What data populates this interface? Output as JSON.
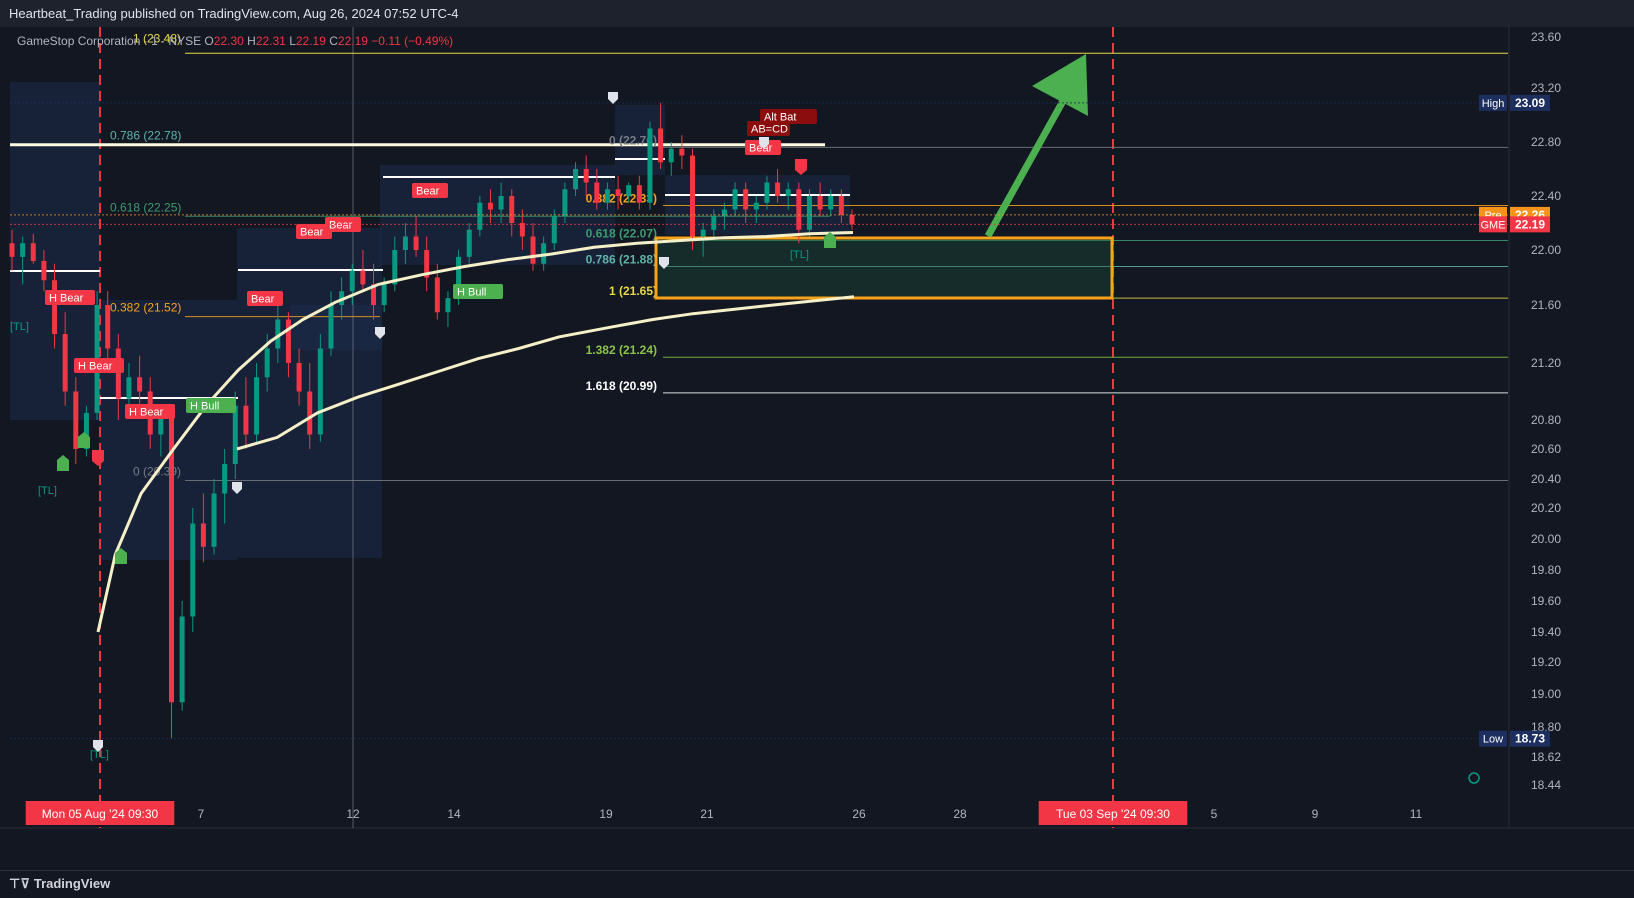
{
  "publisher": "Heartbeat_Trading published on TradingView.com, Aug 26, 2024 07:52 UTC-4",
  "brand": "TradingView",
  "legend": {
    "symbol": "GameStop Corporation · 1 · NYSE",
    "overlap_text": "1 (23.48)",
    "o_label": "O",
    "o": "22.30",
    "h_label": "H",
    "h": "22.31",
    "l_label": "L",
    "l": "22.19",
    "c_label": "C",
    "c": "22.19",
    "change": "−0.11 (−0.49%)"
  },
  "colors": {
    "background": "#131722",
    "bull": "#089981",
    "bear": "#f23645",
    "vwap": "#f5f0c8",
    "fib_yellow": "#e6d84a",
    "zone_border": "#f7a21b",
    "arrow": "#4caf50"
  },
  "price_tags": [
    {
      "label": "High",
      "value": "23.09",
      "price": 23.09,
      "bg": "#1c2f5e",
      "color": "#ffffff"
    },
    {
      "label": "Pre",
      "value": "22.26",
      "price": 22.26,
      "bg": "#f7931a",
      "color": "#ffffff"
    },
    {
      "label": "GME",
      "value": "22.19",
      "price": 22.19,
      "bg": "#f23645",
      "color": "#ffffff"
    },
    {
      "label": "Low",
      "value": "18.73",
      "price": 18.73,
      "bg": "#1c2f5e",
      "color": "#ffffff"
    }
  ],
  "chart_data": {
    "type": "candlestick",
    "title": "",
    "ylim": [
      18.36,
      23.72
    ],
    "y_ticks": [
      "23.60",
      "23.20",
      "22.80",
      "22.40",
      "22.00",
      "21.60",
      "21.20",
      "20.80",
      "20.60",
      "20.40",
      "20.20",
      "20.00",
      "19.80",
      "19.60",
      "19.40",
      "19.20",
      "19.00",
      "18.80",
      "18.62",
      "18.44"
    ],
    "x_ticks": [
      {
        "label": "Mon 05 Aug '24   09:30",
        "highlight": true
      },
      {
        "label": "7"
      },
      {
        "label": "12"
      },
      {
        "label": "14"
      },
      {
        "label": "19"
      },
      {
        "label": "21"
      },
      {
        "label": "26"
      },
      {
        "label": "28"
      },
      {
        "label": "Tue 03 Sep '24   09:30",
        "highlight": true
      },
      {
        "label": "5"
      },
      {
        "label": "9"
      },
      {
        "label": "11"
      }
    ],
    "fib_left": [
      {
        "label": "0.786 (22.78)",
        "price": 22.78,
        "color": "#5fb3a8"
      },
      {
        "label": "0.618 (22.25)",
        "price": 22.25,
        "color": "#3d9970"
      },
      {
        "label": "0.382 (21.52)",
        "price": 21.52,
        "color": "#f7a21b"
      },
      {
        "label": "0 (20.39)",
        "price": 20.39,
        "color": "#787b86"
      }
    ],
    "fib_right": [
      {
        "label": "0 (22.76)",
        "price": 22.76,
        "color": "#787b86"
      },
      {
        "label": "0.382 (22.33)",
        "price": 22.33,
        "color": "#f7a21b"
      },
      {
        "label": "0.618 (22.07)",
        "price": 22.07,
        "color": "#3d9970"
      },
      {
        "label": "0.786 (21.88)",
        "price": 21.88,
        "color": "#5fb3a8"
      },
      {
        "label": "1 (21.65)",
        "price": 21.65,
        "color": "#e6d84a"
      },
      {
        "label": "1.382 (21.24)",
        "price": 21.24,
        "color": "#8bc34a"
      },
      {
        "label": "1.618 (20.99)",
        "price": 20.99,
        "color": "#ffffff"
      }
    ],
    "top_fib": {
      "label": "1 (23.48)",
      "price": 23.48
    },
    "signals": [
      {
        "text": "H Bear",
        "type": "bear"
      },
      {
        "text": "H Bear",
        "type": "bear"
      },
      {
        "text": "H Bear",
        "type": "bear"
      },
      {
        "text": "H Bull",
        "type": "bull"
      },
      {
        "text": "Bear",
        "type": "bear"
      },
      {
        "text": "Bear",
        "type": "bear"
      },
      {
        "text": "Bear",
        "type": "bear"
      },
      {
        "text": "Bear",
        "type": "bear"
      },
      {
        "text": "H Bull",
        "type": "bull"
      },
      {
        "text": "Alt Bat",
        "type": "dark"
      },
      {
        "text": "AB=CD",
        "type": "dark"
      },
      {
        "text": "Bear",
        "type": "bear"
      }
    ],
    "tl_tags": [
      "[TL]",
      "[TL]",
      "[TL]",
      "[TL]"
    ],
    "vwap_upper": [
      [
        19.4,
        0
      ],
      [
        19.9,
        8
      ],
      [
        20.3,
        20
      ],
      [
        20.6,
        35
      ],
      [
        20.9,
        50
      ],
      [
        21.15,
        65
      ],
      [
        21.35,
        80
      ],
      [
        21.5,
        95
      ],
      [
        21.62,
        110
      ],
      [
        21.75,
        130
      ],
      [
        21.82,
        150
      ],
      [
        21.88,
        170
      ],
      [
        21.93,
        190
      ],
      [
        21.97,
        210
      ],
      [
        22.02,
        230
      ],
      [
        22.05,
        250
      ],
      [
        22.07,
        270
      ],
      [
        22.09,
        290
      ],
      [
        22.1,
        310
      ],
      [
        22.12,
        330
      ],
      [
        22.13,
        350
      ]
    ],
    "vwap_lower": [
      [
        20.6,
        0
      ],
      [
        20.68,
        15
      ],
      [
        20.85,
        30
      ],
      [
        20.96,
        45
      ],
      [
        21.05,
        60
      ],
      [
        21.14,
        75
      ],
      [
        21.23,
        90
      ],
      [
        21.3,
        105
      ],
      [
        21.38,
        120
      ],
      [
        21.45,
        140
      ],
      [
        21.5,
        155
      ],
      [
        21.54,
        170
      ],
      [
        21.57,
        185
      ],
      [
        21.6,
        200
      ],
      [
        21.63,
        215
      ],
      [
        21.66,
        230
      ]
    ],
    "candles": [
      [
        22.05,
        22.15,
        21.85,
        21.95
      ],
      [
        21.95,
        22.1,
        21.75,
        22.05
      ],
      [
        22.05,
        22.12,
        21.9,
        21.92
      ],
      [
        21.92,
        22.0,
        21.7,
        21.78
      ],
      [
        21.78,
        21.9,
        21.3,
        21.4
      ],
      [
        21.4,
        21.55,
        20.9,
        21.0
      ],
      [
        21.0,
        21.1,
        20.5,
        20.6
      ],
      [
        20.6,
        20.9,
        20.55,
        20.85
      ],
      [
        20.85,
        21.7,
        20.8,
        21.6
      ],
      [
        21.6,
        21.7,
        21.2,
        21.3
      ],
      [
        21.3,
        21.4,
        20.8,
        20.95
      ],
      [
        20.95,
        21.2,
        20.85,
        21.1
      ],
      [
        21.1,
        21.25,
        20.9,
        21.0
      ],
      [
        21.0,
        21.1,
        20.6,
        20.7
      ],
      [
        20.7,
        20.9,
        20.55,
        20.82
      ],
      [
        20.82,
        20.9,
        18.73,
        18.95
      ],
      [
        18.95,
        19.6,
        18.9,
        19.5
      ],
      [
        19.5,
        20.2,
        19.4,
        20.1
      ],
      [
        20.1,
        20.3,
        19.85,
        19.95
      ],
      [
        19.95,
        20.4,
        19.9,
        20.3
      ],
      [
        20.3,
        20.6,
        20.1,
        20.5
      ],
      [
        20.5,
        21.0,
        20.4,
        20.9
      ],
      [
        20.9,
        21.1,
        20.6,
        20.7
      ],
      [
        20.7,
        21.2,
        20.65,
        21.1
      ],
      [
        21.1,
        21.4,
        21.0,
        21.3
      ],
      [
        21.3,
        21.6,
        21.2,
        21.5
      ],
      [
        21.5,
        21.55,
        21.1,
        21.2
      ],
      [
        21.2,
        21.3,
        20.9,
        21.0
      ],
      [
        21.0,
        21.2,
        20.6,
        20.7
      ],
      [
        20.7,
        21.4,
        20.65,
        21.3
      ],
      [
        21.3,
        21.7,
        21.25,
        21.6
      ],
      [
        21.6,
        21.8,
        21.5,
        21.7
      ],
      [
        21.7,
        21.9,
        21.6,
        21.85
      ],
      [
        21.85,
        22.0,
        21.7,
        21.75
      ],
      [
        21.75,
        21.9,
        21.5,
        21.6
      ],
      [
        21.6,
        21.8,
        21.55,
        21.75
      ],
      [
        21.75,
        22.1,
        21.7,
        22.0
      ],
      [
        22.0,
        22.2,
        21.9,
        22.1
      ],
      [
        22.1,
        22.25,
        21.95,
        22.0
      ],
      [
        22.0,
        22.1,
        21.7,
        21.8
      ],
      [
        21.8,
        21.9,
        21.5,
        21.55
      ],
      [
        21.55,
        21.7,
        21.45,
        21.65
      ],
      [
        21.65,
        22.0,
        21.6,
        21.95
      ],
      [
        21.95,
        22.2,
        21.9,
        22.15
      ],
      [
        22.15,
        22.4,
        22.1,
        22.35
      ],
      [
        22.35,
        22.45,
        22.2,
        22.3
      ],
      [
        22.3,
        22.5,
        22.2,
        22.4
      ],
      [
        22.4,
        22.45,
        22.1,
        22.2
      ],
      [
        22.2,
        22.3,
        22.0,
        22.1
      ],
      [
        22.1,
        22.2,
        21.85,
        21.9
      ],
      [
        21.9,
        22.1,
        21.85,
        22.05
      ],
      [
        22.05,
        22.3,
        22.0,
        22.25
      ],
      [
        22.25,
        22.5,
        22.2,
        22.45
      ],
      [
        22.45,
        22.65,
        22.4,
        22.6
      ],
      [
        22.6,
        22.7,
        22.4,
        22.5
      ],
      [
        22.5,
        22.6,
        22.3,
        22.35
      ],
      [
        22.35,
        22.5,
        22.3,
        22.45
      ],
      [
        22.45,
        22.55,
        22.3,
        22.4
      ],
      [
        22.4,
        22.5,
        22.35,
        22.48
      ],
      [
        22.48,
        22.55,
        22.3,
        22.35
      ],
      [
        22.35,
        22.95,
        22.3,
        22.9
      ],
      [
        22.9,
        23.09,
        22.6,
        22.65
      ],
      [
        22.65,
        22.8,
        22.55,
        22.75
      ],
      [
        22.75,
        22.85,
        22.6,
        22.7
      ],
      [
        22.7,
        22.75,
        22.0,
        22.1
      ],
      [
        22.1,
        22.2,
        21.95,
        22.15
      ],
      [
        22.15,
        22.3,
        22.1,
        22.25
      ],
      [
        22.25,
        22.35,
        22.15,
        22.3
      ],
      [
        22.3,
        22.5,
        22.25,
        22.45
      ],
      [
        22.45,
        22.5,
        22.2,
        22.3
      ],
      [
        22.3,
        22.4,
        22.2,
        22.35
      ],
      [
        22.35,
        22.55,
        22.3,
        22.5
      ],
      [
        22.5,
        22.6,
        22.35,
        22.4
      ],
      [
        22.4,
        22.5,
        22.3,
        22.45
      ],
      [
        22.45,
        22.5,
        22.05,
        22.15
      ],
      [
        22.15,
        22.45,
        22.1,
        22.4
      ],
      [
        22.4,
        22.5,
        22.25,
        22.3
      ],
      [
        22.3,
        22.45,
        22.25,
        22.4
      ],
      [
        22.4,
        22.45,
        22.2,
        22.26
      ],
      [
        22.26,
        22.3,
        22.15,
        22.19
      ]
    ]
  }
}
